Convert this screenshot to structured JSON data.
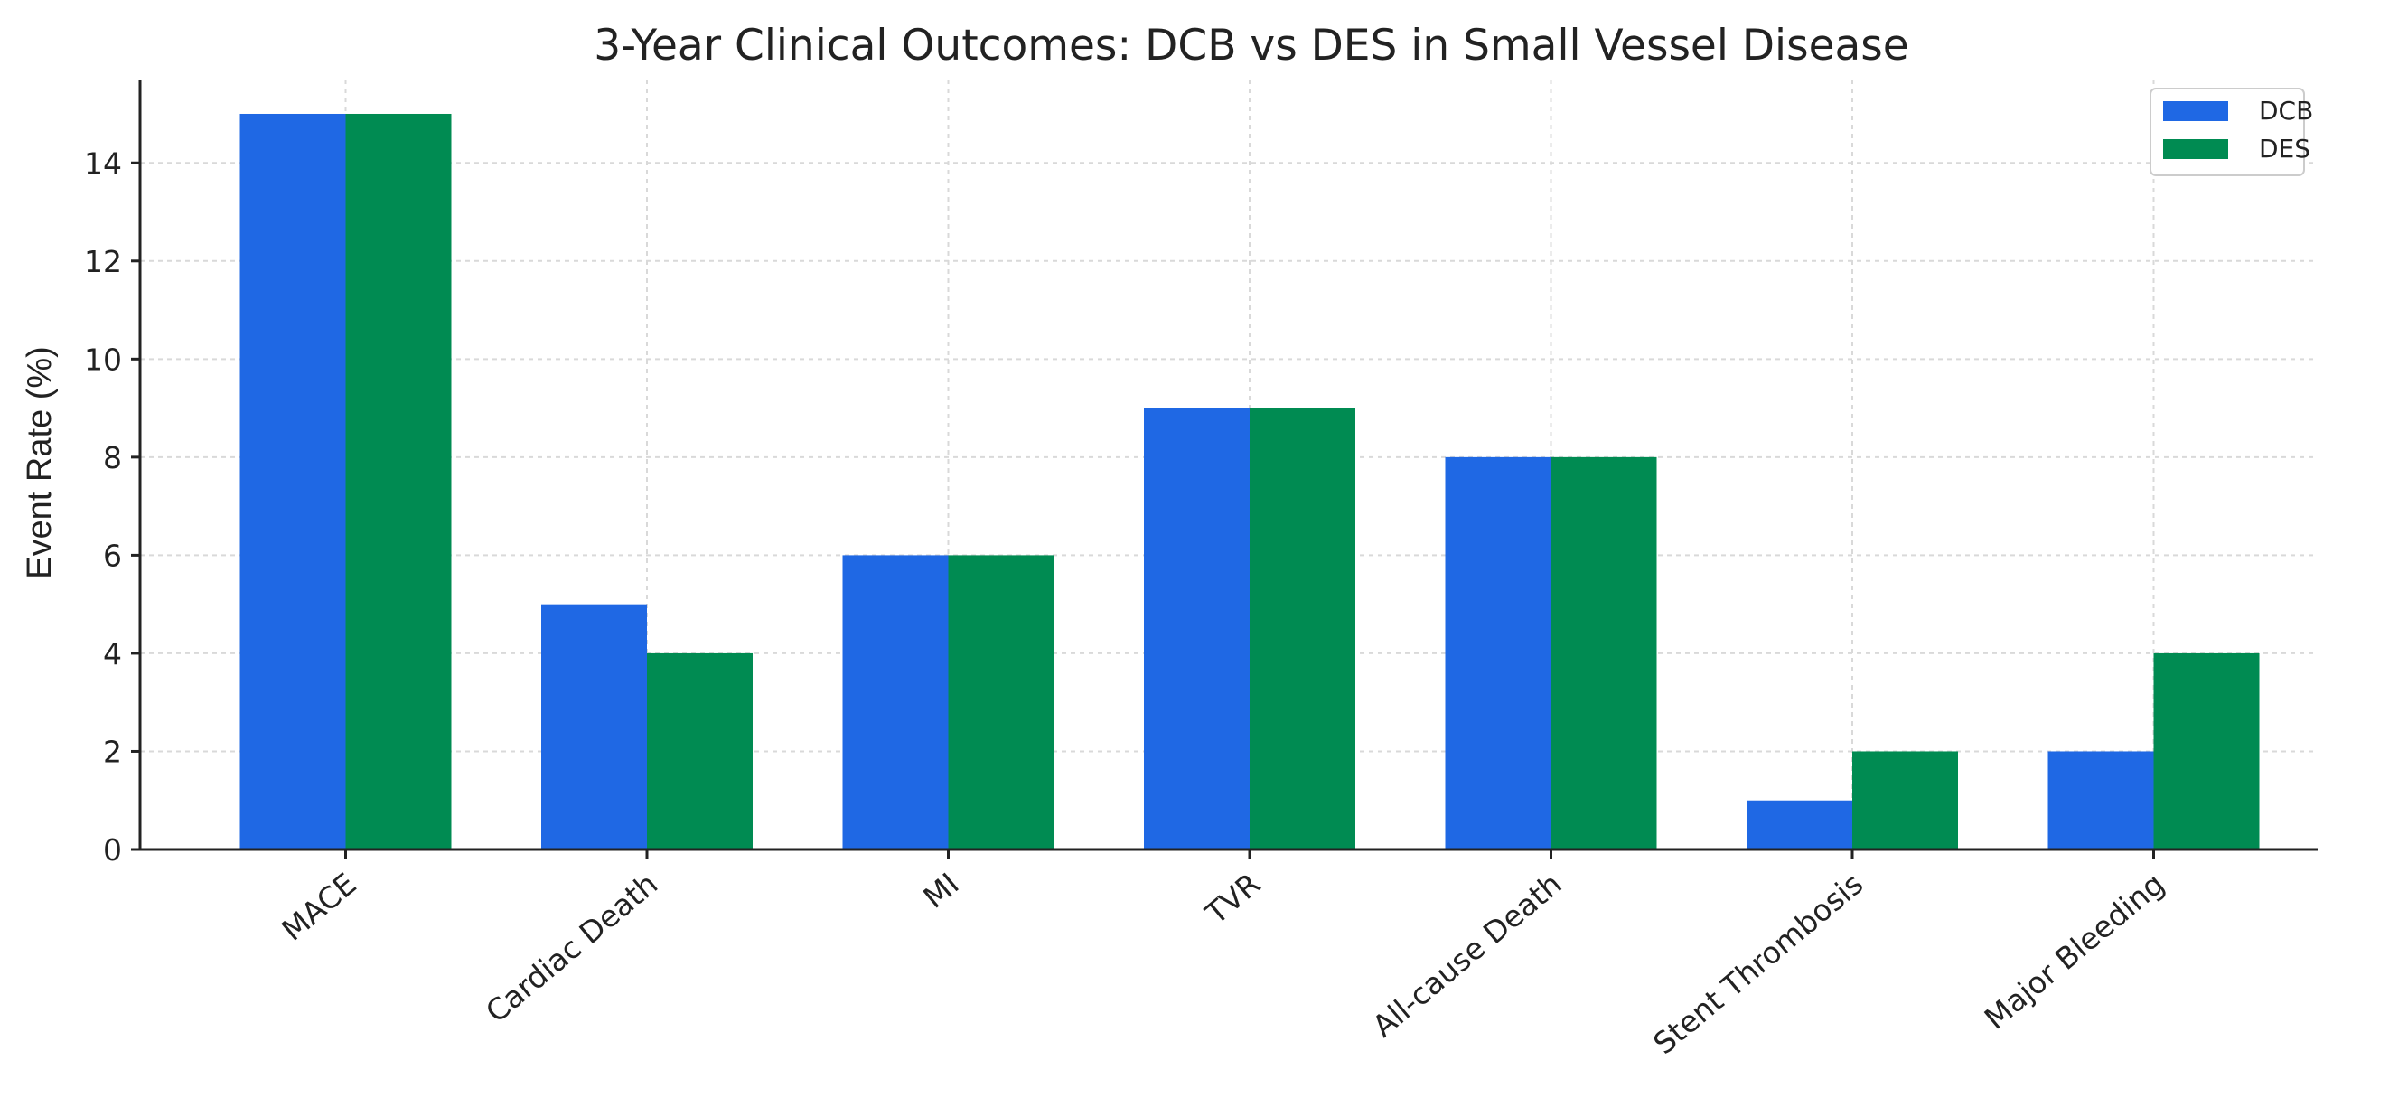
{
  "chart_data": {
    "type": "bar",
    "title": "3-Year Clinical Outcomes: DCB vs DES in Small Vessel Disease",
    "xlabel": "",
    "ylabel": "Event Rate (%)",
    "ylim": [
      0,
      15.7
    ],
    "yticks": [
      0,
      2,
      4,
      6,
      8,
      10,
      12,
      14
    ],
    "grid": true,
    "legend_position": "top-right",
    "categories": [
      "MACE",
      "Cardiac Death",
      "MI",
      "TVR",
      "All-cause Death",
      "Stent Thrombosis",
      "Major Bleeding"
    ],
    "series": [
      {
        "name": "DCB",
        "color": "#1f68e4",
        "values": [
          15,
          5,
          6,
          9,
          8,
          1,
          2
        ]
      },
      {
        "name": "DES",
        "color": "#008b52",
        "values": [
          15,
          4,
          6,
          9,
          8,
          2,
          4
        ]
      }
    ]
  }
}
